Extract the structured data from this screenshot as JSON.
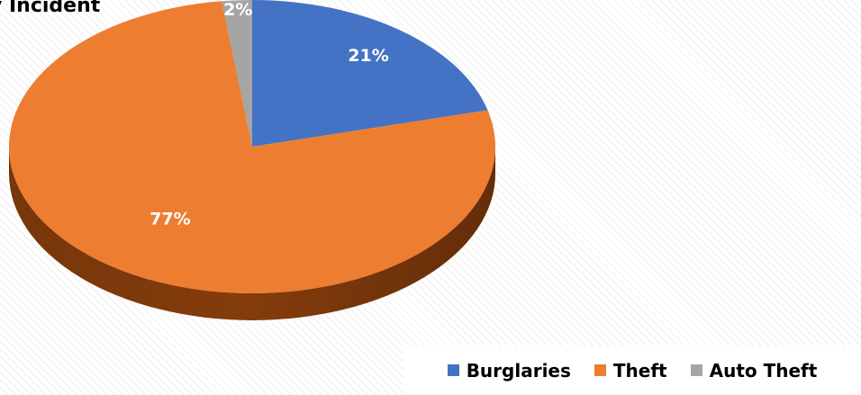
{
  "chart_data": {
    "type": "pie",
    "title": "y Incident",
    "three_d": true,
    "legend_position": "bottom-right",
    "slices": [
      {
        "name": "Burglaries",
        "value": 21,
        "label": "21%",
        "color": "#4472c4",
        "side_color": "#2f5597"
      },
      {
        "name": "Theft",
        "value": 77,
        "label": "77%",
        "color": "#ed7d31",
        "side_color": "#843c0c"
      },
      {
        "name": "Auto Theft",
        "value": 2,
        "label": "2%",
        "color": "#a5a5a5",
        "side_color": "#6d6d6d"
      }
    ]
  }
}
